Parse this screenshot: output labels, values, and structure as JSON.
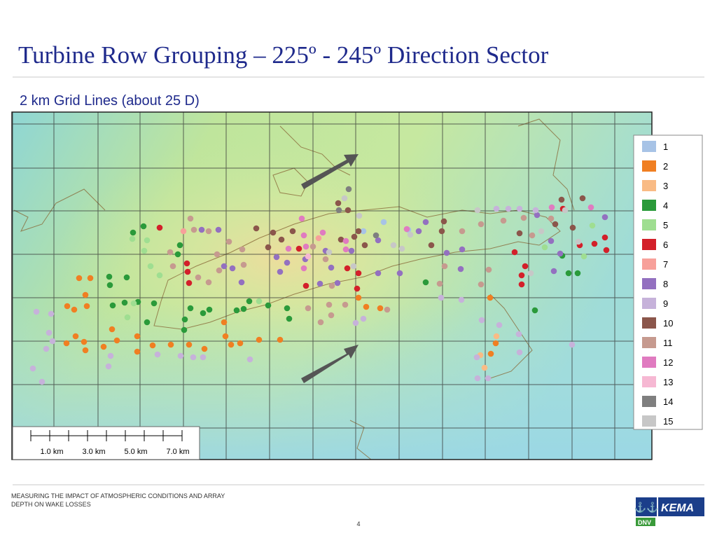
{
  "header": {
    "title": "Turbine Row Grouping – 225º - 245º Direction Sector",
    "subtitle": "2 km Grid Lines (about 25 D)"
  },
  "map": {
    "legend": [
      {
        "label": "1",
        "color": "#a7c3e6"
      },
      {
        "label": "2",
        "color": "#f07f22"
      },
      {
        "label": "3",
        "color": "#f9bb85"
      },
      {
        "label": "4",
        "color": "#2a9a3a"
      },
      {
        "label": "5",
        "color": "#9fde91"
      },
      {
        "label": "6",
        "color": "#d3202a"
      },
      {
        "label": "7",
        "color": "#f7a09a"
      },
      {
        "label": "8",
        "color": "#9370c0"
      },
      {
        "label": "9",
        "color": "#c6b2da"
      },
      {
        "label": "10",
        "color": "#8b564b"
      },
      {
        "label": "11",
        "color": "#c69a8f"
      },
      {
        "label": "12",
        "color": "#e07bc0"
      },
      {
        "label": "13",
        "color": "#f6b8d3"
      },
      {
        "label": "14",
        "color": "#7f7f7f"
      },
      {
        "label": "15",
        "color": "#c7c7c7"
      }
    ],
    "scale_bar": {
      "labels": [
        "1.0 km",
        "3.0 km",
        "5.0 km",
        "7.0 km"
      ]
    }
  },
  "footer": {
    "text": [
      "MEASURING THE IMPACT OF ATMOSPHERIC CONDITIONS AND ARRAY",
      "DEPTH ON WAKE LOSSES"
    ],
    "page": "4",
    "logo": {
      "brand": "KEMA",
      "partner": "DNV"
    }
  }
}
